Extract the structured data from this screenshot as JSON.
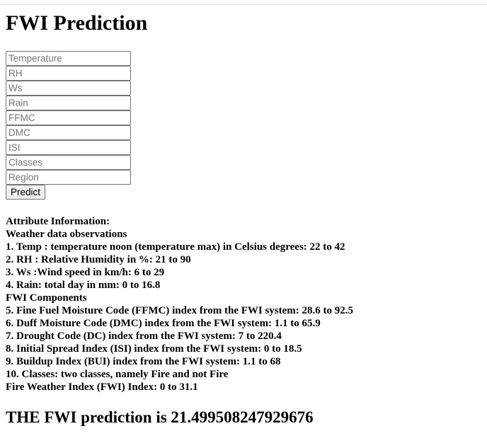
{
  "page": {
    "title": "FWI Prediction"
  },
  "form": {
    "fields": [
      {
        "placeholder": "Temperature",
        "value": ""
      },
      {
        "placeholder": "RH",
        "value": ""
      },
      {
        "placeholder": "Ws",
        "value": ""
      },
      {
        "placeholder": "Rain",
        "value": ""
      },
      {
        "placeholder": "FFMC",
        "value": ""
      },
      {
        "placeholder": "DMC",
        "value": ""
      },
      {
        "placeholder": "ISI",
        "value": ""
      },
      {
        "placeholder": "Classes",
        "value": ""
      },
      {
        "placeholder": "Region",
        "value": ""
      }
    ],
    "submit_label": "Predict"
  },
  "info": {
    "lines": [
      "Attribute Information:",
      "Weather data observations",
      "1. Temp : temperature noon (temperature max) in Celsius degrees: 22 to 42",
      "2. RH : Relative Humidity in %: 21 to 90",
      "3. Ws :Wind speed in km/h: 6 to 29",
      "4. Rain: total day in mm: 0 to 16.8",
      "FWI Components",
      "5. Fine Fuel Moisture Code (FFMC) index from the FWI system: 28.6 to 92.5",
      "6. Duff Moisture Code (DMC) index from the FWI system: 1.1 to 65.9",
      "7. Drought Code (DC) index from the FWI system: 7 to 220.4",
      "8. Initial Spread Index (ISI) index from the FWI system: 0 to 18.5",
      "9. Buildup Index (BUI) index from the FWI system: 1.1 to 68",
      "10. Classes: two classes, namely Fire and not Fire",
      "Fire Weather Index (FWI) Index: 0 to 31.1"
    ]
  },
  "result": {
    "text": "THE FWI prediction is 21.499508247929676"
  }
}
